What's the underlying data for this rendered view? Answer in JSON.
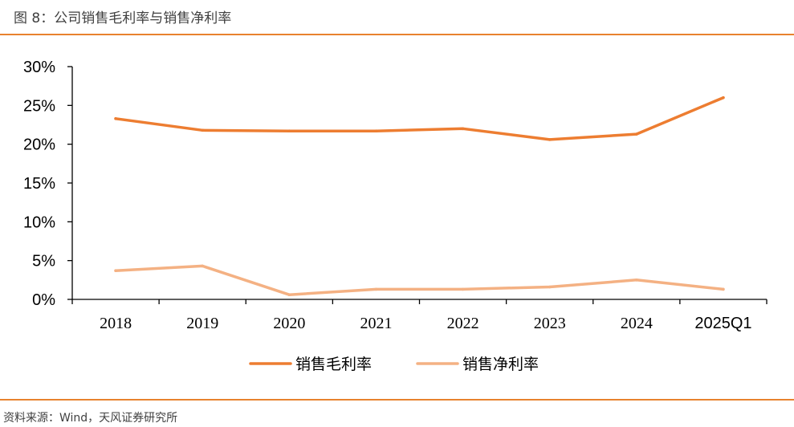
{
  "figure": {
    "title": "图 8：公司销售毛利率与销售净利率",
    "source": "资料来源：Wind，天风证券研究所"
  },
  "colors": {
    "accent": "#E8822E",
    "gross_margin": "#ED7D31",
    "net_margin": "#F4B183",
    "axis": "#000000"
  },
  "chart_data": {
    "type": "line",
    "categories": [
      "2018",
      "2019",
      "2020",
      "2021",
      "2022",
      "2023",
      "2024",
      "2025Q1"
    ],
    "series": [
      {
        "name": "销售毛利率",
        "values": [
          23.3,
          21.8,
          21.7,
          21.7,
          22.0,
          20.6,
          21.3,
          26.0
        ]
      },
      {
        "name": "销售净利率",
        "values": [
          3.7,
          4.3,
          0.6,
          1.3,
          1.3,
          1.6,
          2.5,
          1.3
        ]
      }
    ],
    "yticks": [
      "30%",
      "25%",
      "20%",
      "15%",
      "10%",
      "5%",
      "0%"
    ],
    "ylim": [
      0,
      30
    ],
    "ystep": 5,
    "xlabel": "",
    "ylabel": "",
    "grid": false,
    "legend_position": "bottom-center"
  }
}
